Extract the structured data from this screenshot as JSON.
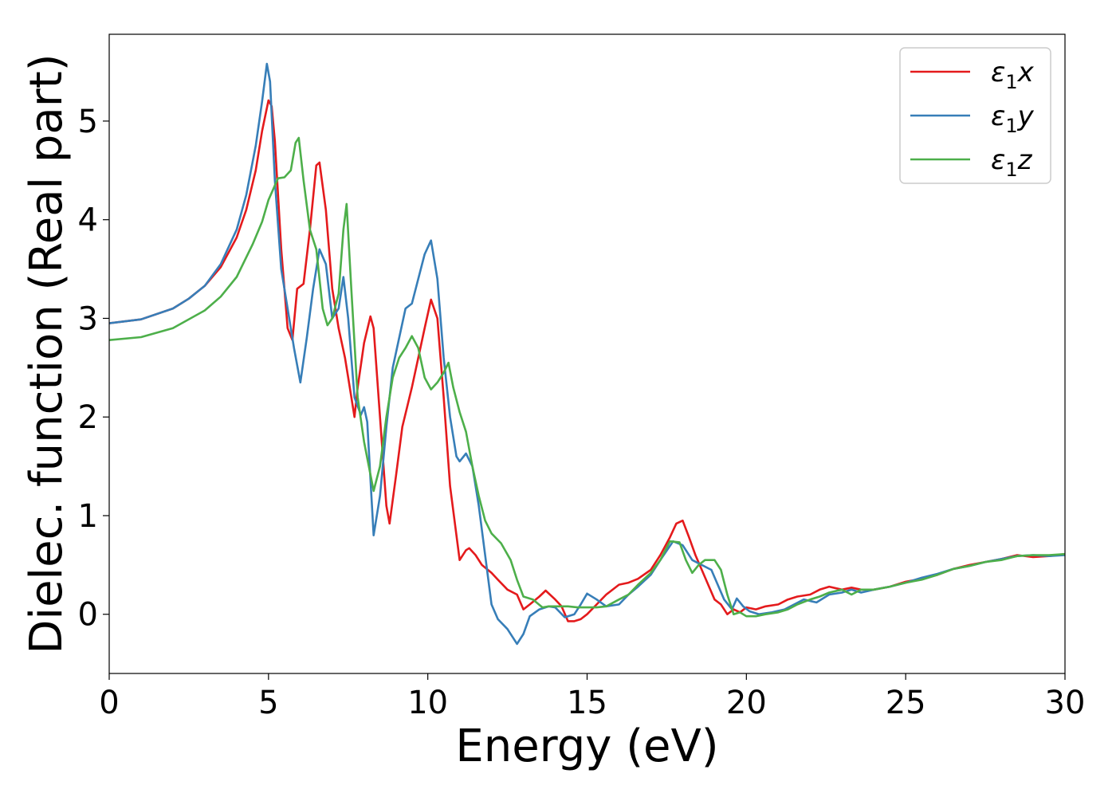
{
  "chart_data": {
    "type": "line",
    "xlabel": "Energy (eV)",
    "ylabel": "Dielec. function (Real part)",
    "xlim": [
      0,
      30
    ],
    "ylim": [
      -0.6,
      5.88
    ],
    "xticks": [
      0,
      5,
      10,
      15,
      20,
      25,
      30
    ],
    "yticks": [
      0,
      1,
      2,
      3,
      4,
      5
    ],
    "grid": false,
    "legend": "top-right",
    "series": [
      {
        "name": "ε₁x",
        "legend_main": "ε",
        "legend_sub": "1",
        "legend_var": "x",
        "color": "#e41a1c",
        "x": [
          0,
          1,
          2,
          2.5,
          3,
          3.5,
          4,
          4.3,
          4.6,
          4.8,
          5.0,
          5.1,
          5.2,
          5.4,
          5.6,
          5.75,
          5.9,
          6.1,
          6.3,
          6.5,
          6.6,
          6.8,
          7.0,
          7.2,
          7.4,
          7.5,
          7.7,
          7.8,
          8.0,
          8.2,
          8.3,
          8.5,
          8.7,
          8.8,
          9.0,
          9.2,
          9.5,
          9.7,
          9.9,
          10.1,
          10.3,
          10.5,
          10.7,
          10.9,
          11.0,
          11.2,
          11.3,
          11.5,
          11.7,
          12.0,
          12.2,
          12.5,
          12.8,
          13.0,
          13.2,
          13.5,
          13.7,
          14.0,
          14.2,
          14.4,
          14.6,
          14.8,
          15.0,
          15.3,
          15.6,
          16.0,
          16.3,
          16.6,
          17.0,
          17.3,
          17.6,
          17.8,
          18.0,
          18.2,
          18.4,
          18.6,
          18.8,
          19.0,
          19.2,
          19.4,
          19.6,
          19.8,
          20.0,
          20.3,
          20.6,
          21.0,
          21.3,
          21.6,
          22.0,
          22.3,
          22.6,
          23.0,
          23.3,
          23.6,
          24.0,
          24.5,
          25.0,
          25.5,
          26.0,
          26.5,
          27.0,
          27.5,
          28.0,
          28.5,
          29.0,
          29.5,
          30.0
        ],
        "y": [
          2.95,
          2.99,
          3.1,
          3.2,
          3.33,
          3.52,
          3.82,
          4.1,
          4.5,
          4.9,
          5.21,
          5.15,
          4.8,
          3.7,
          2.9,
          2.78,
          3.3,
          3.35,
          3.9,
          4.55,
          4.58,
          4.1,
          3.3,
          2.9,
          2.6,
          2.4,
          2.0,
          2.3,
          2.75,
          3.02,
          2.9,
          2.0,
          1.1,
          0.92,
          1.4,
          1.9,
          2.3,
          2.6,
          2.9,
          3.19,
          3.0,
          2.2,
          1.3,
          0.8,
          0.55,
          0.65,
          0.67,
          0.6,
          0.5,
          0.42,
          0.35,
          0.25,
          0.2,
          0.05,
          0.1,
          0.18,
          0.24,
          0.15,
          0.08,
          -0.07,
          -0.07,
          -0.05,
          0.0,
          0.1,
          0.2,
          0.3,
          0.32,
          0.36,
          0.45,
          0.6,
          0.78,
          0.92,
          0.95,
          0.78,
          0.6,
          0.45,
          0.3,
          0.15,
          0.1,
          0.0,
          0.05,
          0.02,
          0.07,
          0.05,
          0.08,
          0.1,
          0.15,
          0.18,
          0.2,
          0.25,
          0.28,
          0.25,
          0.27,
          0.25,
          0.25,
          0.28,
          0.33,
          0.36,
          0.4,
          0.46,
          0.5,
          0.53,
          0.56,
          0.6,
          0.58,
          0.59,
          0.61
        ]
      },
      {
        "name": "ε₁y",
        "legend_main": "ε",
        "legend_sub": "1",
        "legend_var": "y",
        "color": "#377eb8",
        "x": [
          0,
          1,
          2,
          2.5,
          3,
          3.5,
          4,
          4.3,
          4.6,
          4.8,
          4.95,
          5.05,
          5.2,
          5.4,
          5.6,
          5.8,
          6.0,
          6.2,
          6.4,
          6.6,
          6.8,
          7.0,
          7.2,
          7.35,
          7.5,
          7.7,
          7.9,
          8.0,
          8.1,
          8.3,
          8.5,
          8.7,
          8.9,
          9.1,
          9.3,
          9.5,
          9.7,
          9.9,
          10.1,
          10.3,
          10.5,
          10.7,
          10.9,
          11.0,
          11.2,
          11.4,
          11.6,
          11.8,
          12.0,
          12.2,
          12.5,
          12.8,
          13.0,
          13.2,
          13.5,
          13.8,
          14.0,
          14.3,
          14.6,
          14.8,
          15.0,
          15.3,
          15.6,
          16.0,
          16.3,
          16.6,
          17.0,
          17.3,
          17.7,
          18.0,
          18.3,
          18.6,
          18.9,
          19.1,
          19.3,
          19.55,
          19.7,
          19.9,
          20.1,
          20.4,
          20.8,
          21.2,
          21.5,
          21.8,
          22.2,
          22.6,
          23.0,
          23.3,
          23.6,
          24.0,
          24.5,
          25.0,
          25.5,
          26.0,
          26.5,
          27.0,
          27.5,
          28.0,
          28.5,
          29.0,
          29.5,
          30.0
        ],
        "y": [
          2.95,
          2.99,
          3.1,
          3.2,
          3.33,
          3.55,
          3.9,
          4.25,
          4.75,
          5.2,
          5.58,
          5.4,
          4.4,
          3.5,
          3.1,
          2.7,
          2.35,
          2.8,
          3.3,
          3.7,
          3.55,
          3.0,
          3.1,
          3.42,
          3.0,
          2.2,
          2.02,
          2.1,
          1.95,
          0.8,
          1.2,
          1.9,
          2.5,
          2.8,
          3.1,
          3.15,
          3.4,
          3.65,
          3.79,
          3.4,
          2.6,
          2.0,
          1.6,
          1.55,
          1.63,
          1.5,
          1.1,
          0.6,
          0.1,
          -0.05,
          -0.15,
          -0.3,
          -0.2,
          -0.02,
          0.05,
          0.08,
          0.07,
          -0.03,
          0.0,
          0.1,
          0.21,
          0.15,
          0.08,
          0.1,
          0.2,
          0.28,
          0.4,
          0.55,
          0.74,
          0.7,
          0.55,
          0.5,
          0.45,
          0.3,
          0.15,
          0.05,
          0.16,
          0.08,
          0.03,
          0.0,
          0.02,
          0.05,
          0.1,
          0.15,
          0.12,
          0.2,
          0.22,
          0.25,
          0.22,
          0.25,
          0.28,
          0.32,
          0.37,
          0.41,
          0.46,
          0.49,
          0.53,
          0.56,
          0.59,
          0.6,
          0.59,
          0.6
        ]
      },
      {
        "name": "ε₁z",
        "legend_main": "ε",
        "legend_sub": "1",
        "legend_var": "z",
        "color": "#4daf4a",
        "x": [
          0,
          1,
          2,
          3,
          3.5,
          4,
          4.5,
          4.8,
          5.0,
          5.3,
          5.5,
          5.7,
          5.85,
          5.95,
          6.1,
          6.3,
          6.5,
          6.7,
          6.85,
          7.0,
          7.2,
          7.35,
          7.45,
          7.6,
          7.8,
          8.0,
          8.3,
          8.5,
          8.7,
          8.9,
          9.1,
          9.3,
          9.5,
          9.7,
          9.9,
          10.1,
          10.3,
          10.5,
          10.65,
          10.8,
          11.0,
          11.2,
          11.4,
          11.6,
          11.8,
          12.0,
          12.3,
          12.6,
          12.8,
          13.0,
          13.3,
          13.6,
          13.8,
          14.1,
          14.4,
          14.7,
          15.0,
          15.3,
          15.6,
          16.0,
          16.3,
          16.6,
          17.0,
          17.3,
          17.6,
          17.9,
          18.1,
          18.3,
          18.5,
          18.7,
          19.0,
          19.2,
          19.4,
          19.6,
          19.8,
          20.0,
          20.3,
          20.6,
          21.0,
          21.3,
          21.6,
          22.0,
          22.3,
          22.6,
          23.0,
          23.3,
          23.6,
          24.0,
          24.5,
          25.0,
          25.5,
          26.0,
          26.5,
          27.0,
          27.5,
          28.0,
          28.5,
          29.0,
          29.5,
          30.0
        ],
        "y": [
          2.78,
          2.81,
          2.9,
          3.08,
          3.22,
          3.42,
          3.75,
          3.98,
          4.2,
          4.42,
          4.43,
          4.5,
          4.78,
          4.83,
          4.4,
          3.9,
          3.7,
          3.1,
          2.93,
          3.0,
          3.25,
          3.9,
          4.16,
          3.3,
          2.2,
          1.75,
          1.25,
          1.5,
          2.0,
          2.4,
          2.6,
          2.7,
          2.82,
          2.7,
          2.4,
          2.28,
          2.35,
          2.45,
          2.55,
          2.3,
          2.05,
          1.85,
          1.5,
          1.2,
          0.95,
          0.82,
          0.72,
          0.55,
          0.35,
          0.18,
          0.15,
          0.07,
          0.08,
          0.08,
          0.08,
          0.07,
          0.07,
          0.07,
          0.08,
          0.15,
          0.2,
          0.3,
          0.42,
          0.55,
          0.74,
          0.73,
          0.55,
          0.42,
          0.5,
          0.55,
          0.55,
          0.45,
          0.2,
          0.0,
          0.02,
          -0.02,
          -0.02,
          0.0,
          0.02,
          0.05,
          0.1,
          0.15,
          0.18,
          0.22,
          0.25,
          0.2,
          0.25,
          0.25,
          0.28,
          0.32,
          0.35,
          0.4,
          0.46,
          0.49,
          0.53,
          0.55,
          0.59,
          0.6,
          0.6,
          0.61
        ]
      }
    ]
  }
}
